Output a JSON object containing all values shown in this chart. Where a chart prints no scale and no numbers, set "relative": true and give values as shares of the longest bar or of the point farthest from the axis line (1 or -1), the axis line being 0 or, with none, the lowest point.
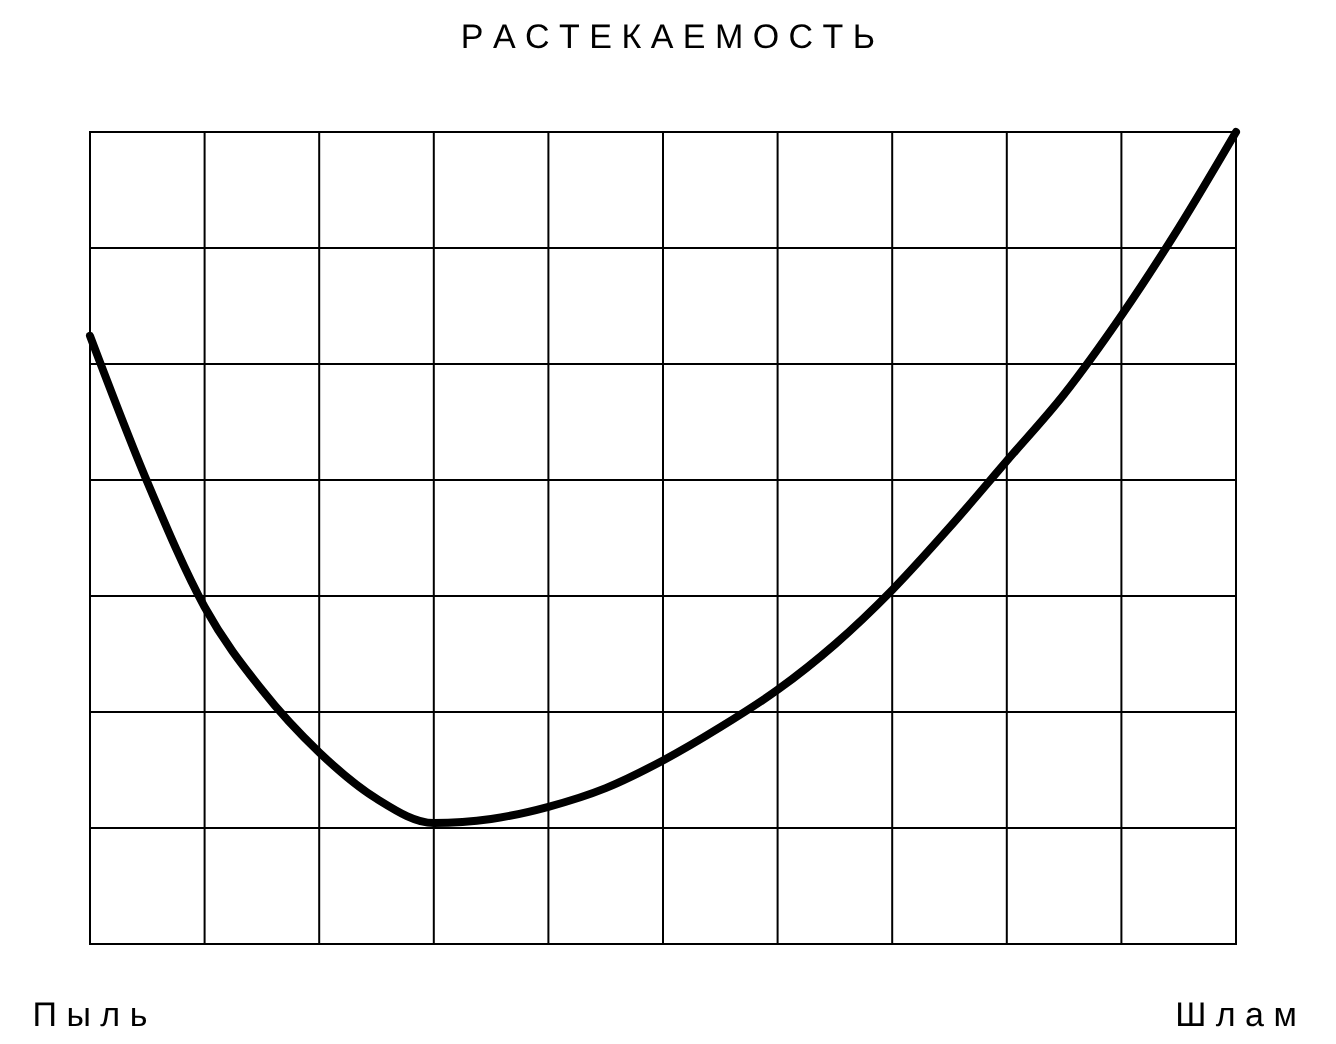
{
  "chart_data": {
    "type": "line",
    "title": "Р А С Т Е К А Е М О С Т Ь",
    "relative": true,
    "grid": true,
    "marker": "none",
    "line_style": "solid",
    "categories": [
      "П ы л ь",
      null,
      null,
      null,
      null,
      null,
      null,
      null,
      null,
      null,
      null,
      null,
      null,
      null,
      null,
      null,
      null,
      null,
      null,
      null,
      "Ш л а м"
    ],
    "series": [
      {
        "color": "#000000",
        "values": [
          0.749,
          0.569,
          0.415,
          0.313,
          0.236,
          0.179,
          0.149,
          0.154,
          0.169,
          0.192,
          0.226,
          0.267,
          0.313,
          0.369,
          0.436,
          0.513,
          0.595,
          0.677,
          0.774,
          0.882,
          1
        ]
      }
    ]
  }
}
